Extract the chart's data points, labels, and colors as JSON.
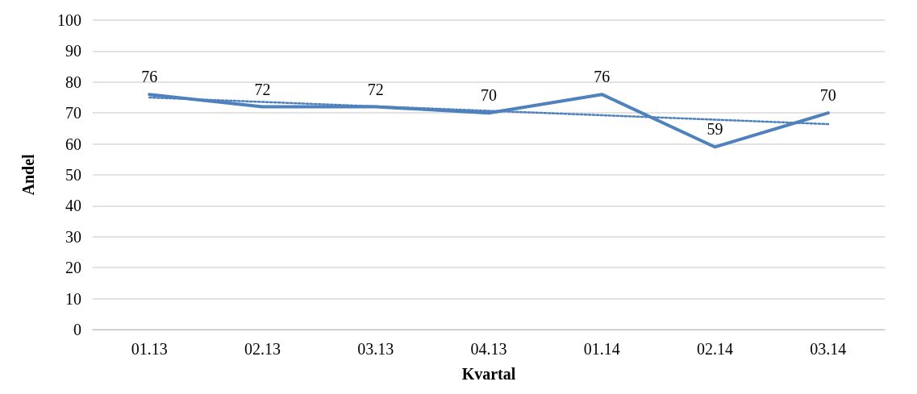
{
  "chart_data": {
    "type": "line",
    "xlabel": "Kvartal",
    "ylabel": "Andel",
    "categories": [
      "01.13",
      "02.13",
      "03.13",
      "04.13",
      "01.14",
      "02.14",
      "03.14"
    ],
    "series": [
      {
        "color": "#4f81bd",
        "values": [
          76,
          72,
          72,
          70,
          76,
          59,
          70
        ],
        "value_labels": [
          "76",
          "72",
          "72",
          "70",
          "76",
          "59",
          "70"
        ],
        "line_style": "solid"
      },
      {
        "color": "#4f81bd",
        "x": [
          "01.13",
          "03.14"
        ],
        "values": [
          75,
          66.4
        ],
        "line_style": "dotted"
      }
    ],
    "ylim": [
      0,
      100
    ],
    "yticks": [
      0,
      10,
      20,
      30,
      40,
      50,
      60,
      70,
      80,
      90,
      100
    ],
    "grid": "y",
    "marker": "none"
  }
}
